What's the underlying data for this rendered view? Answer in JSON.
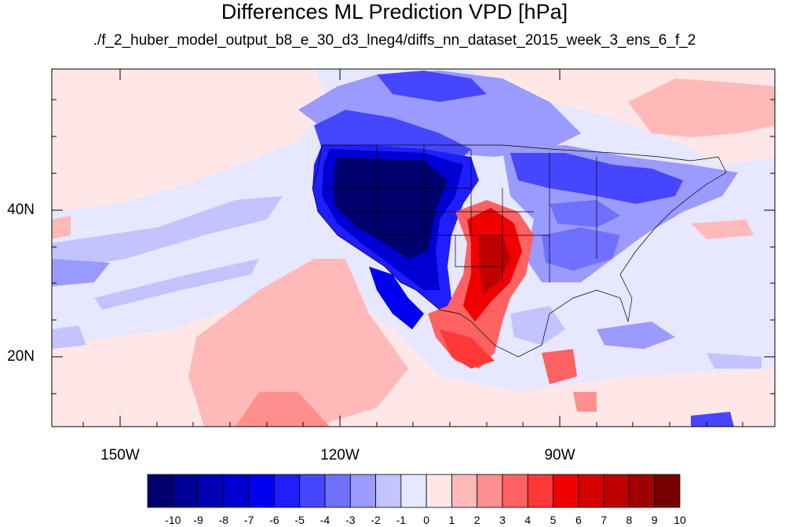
{
  "title": "Differences ML Prediction VPD [hPa]",
  "subtitle": "./f_2_huber_model_output_b8_e_30_d3_lneg4/diffs_nn_dataset_2015_week_3_ens_6_f_2",
  "map": {
    "lat_labels": [
      "40N",
      "20N"
    ],
    "lon_labels": [
      "150W",
      "120W",
      "90W"
    ]
  },
  "colorbar": {
    "labels": [
      "-10",
      "-9",
      "-8",
      "-7",
      "-6",
      "-5",
      "-4",
      "-3",
      "-2",
      "-1",
      "0",
      "1",
      "2",
      "3",
      "4",
      "5",
      "6",
      "7",
      "8",
      "9",
      "10"
    ],
    "colors": [
      "#00006e",
      "#000096",
      "#0000b4",
      "#0000d2",
      "#0000f0",
      "#1e1eff",
      "#4646ff",
      "#7070ff",
      "#9a9aff",
      "#c3c3ff",
      "#e7e7ff",
      "#ffe7e7",
      "#ffb9b9",
      "#ff8e8e",
      "#ff6262",
      "#ff3838",
      "#f00000",
      "#d70000",
      "#be0000",
      "#a00000",
      "#780000"
    ]
  }
}
